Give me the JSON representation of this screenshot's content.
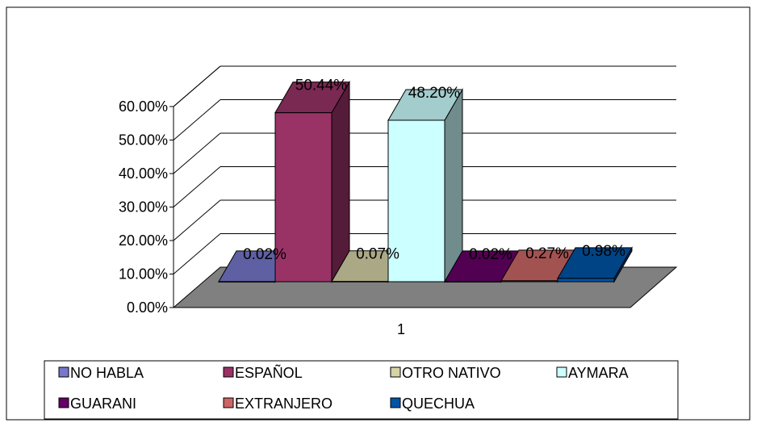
{
  "chart_data": {
    "type": "bar",
    "variant": "3d-clustered",
    "categories": [
      "1"
    ],
    "series": [
      {
        "name": "NO HABLA",
        "values": [
          0.02
        ],
        "label": "0.02%",
        "color": "#7777cc"
      },
      {
        "name": "ESPAÑOL",
        "values": [
          50.44
        ],
        "label": "50.44%",
        "color": "#993366"
      },
      {
        "name": "OTRO NATIVO",
        "values": [
          0.07
        ],
        "label": "0.07%",
        "color": "#d6d3a6"
      },
      {
        "name": "AYMARA",
        "values": [
          48.2
        ],
        "label": "48.20%",
        "color": "#ccffff"
      },
      {
        "name": "GUARANI",
        "values": [
          0.02
        ],
        "label": "0.02%",
        "color": "#660066"
      },
      {
        "name": "EXTRANJERO",
        "values": [
          0.27
        ],
        "label": "0.27%",
        "color": "#cc6666"
      },
      {
        "name": "QUECHUA",
        "values": [
          0.98
        ],
        "label": "0.98%",
        "color": "#0055a6"
      }
    ],
    "y_ticks": [
      "0.00%",
      "10.00%",
      "20.00%",
      "30.00%",
      "40.00%",
      "50.00%",
      "60.00%"
    ],
    "ylim": [
      0,
      60
    ],
    "xlabel": "",
    "ylabel": "",
    "title": "",
    "grid": true,
    "legend_position": "bottom",
    "floor_color": "#808080"
  }
}
